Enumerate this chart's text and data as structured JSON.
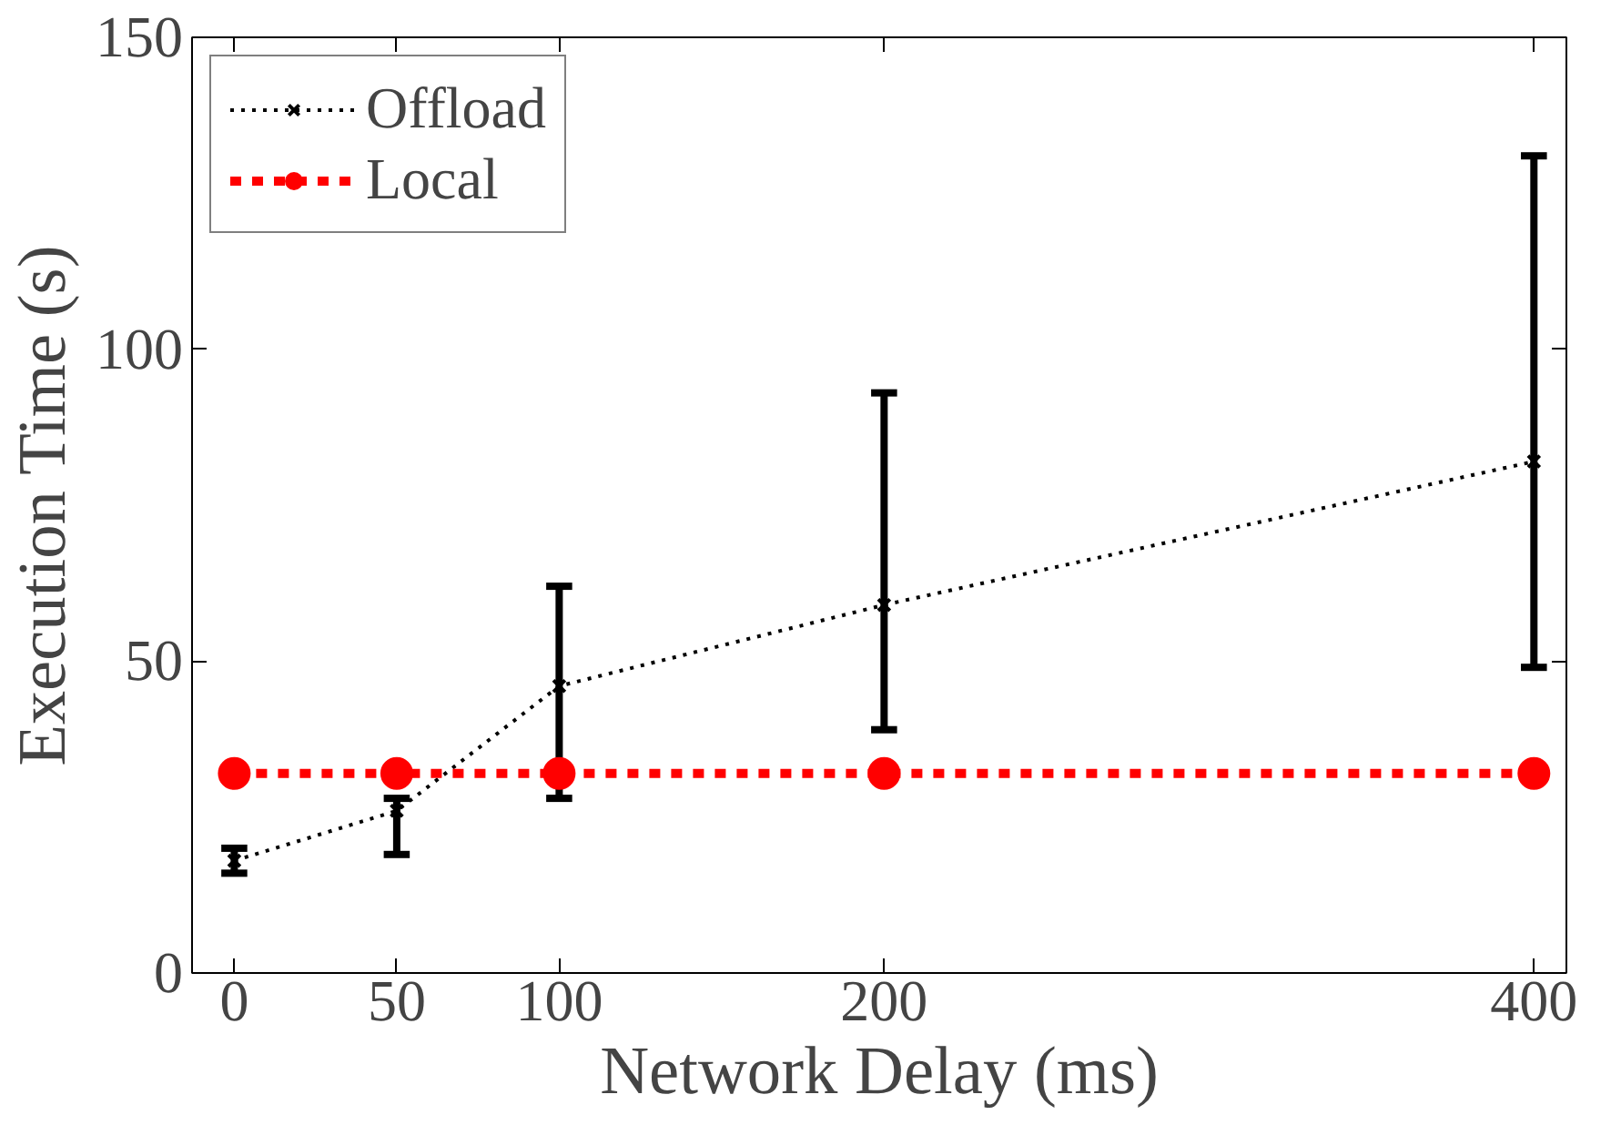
{
  "chart_data": {
    "type": "line",
    "xlabel": "Network Delay (ms)",
    "ylabel": "Execution Time (s)",
    "x": [
      0,
      50,
      100,
      200,
      400
    ],
    "xlim": [
      -13,
      410
    ],
    "ylim": [
      0,
      150
    ],
    "xticks": [
      0,
      50,
      100,
      200,
      400
    ],
    "yticks": [
      0,
      50,
      100,
      150
    ],
    "grid": false,
    "legend": "top left",
    "series": [
      {
        "name": "Offload",
        "color": "#000000",
        "marker": "cross",
        "line_style": "dotted",
        "values": [
          18,
          26,
          46,
          59,
          82
        ],
        "errors": [
          [
            16,
            20
          ],
          [
            19,
            28
          ],
          [
            28,
            62
          ],
          [
            39,
            93
          ],
          [
            49,
            131
          ]
        ]
      },
      {
        "name": "Local",
        "color": "#ff0000",
        "marker": "circle",
        "line_style": "dashed",
        "values": [
          32,
          32,
          32,
          32,
          32
        ]
      }
    ]
  }
}
